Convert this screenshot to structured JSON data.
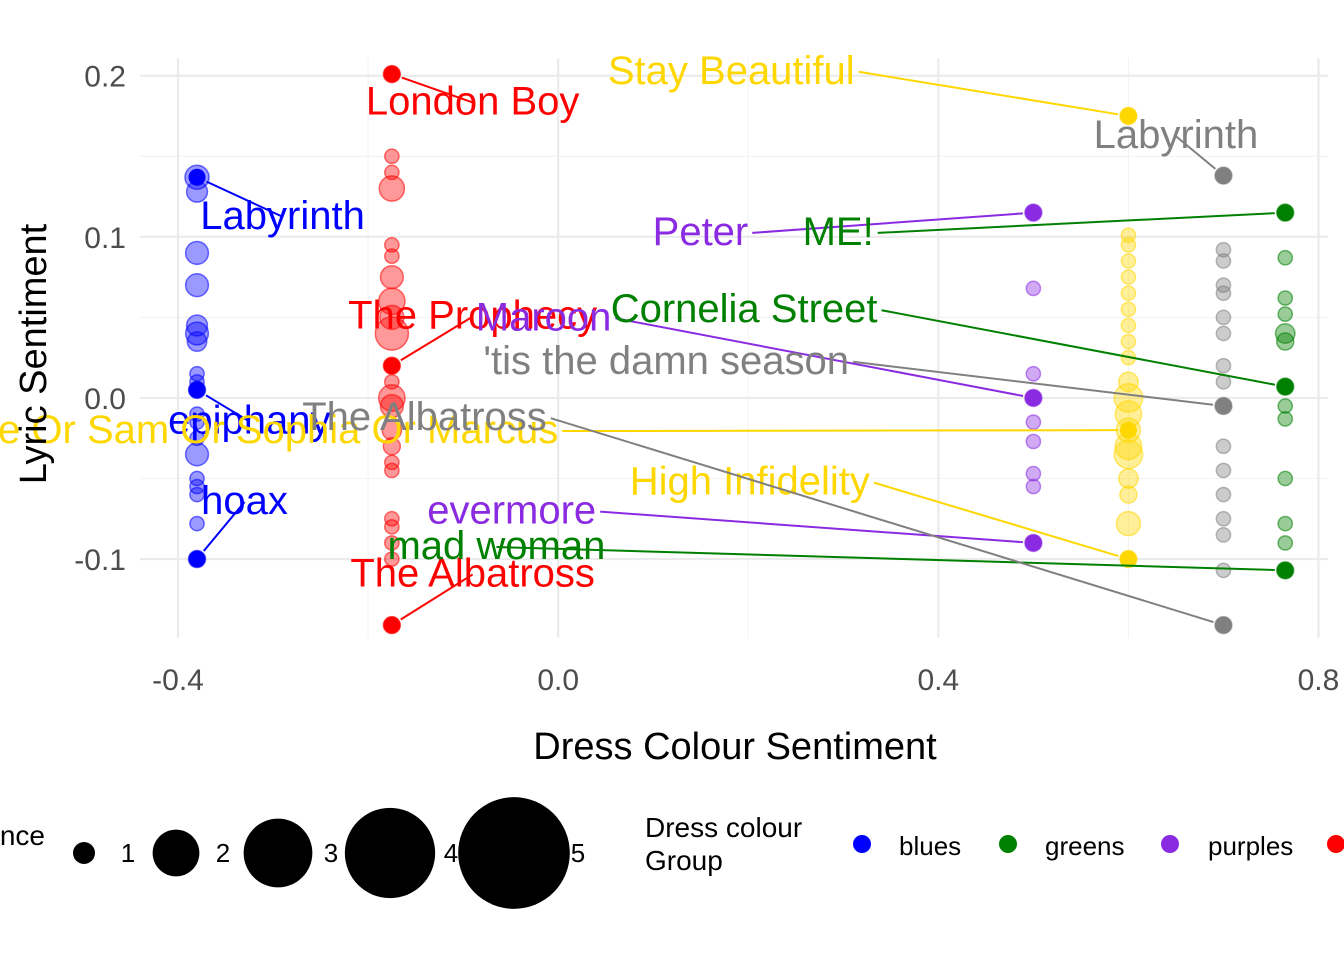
{
  "chart_data": {
    "type": "scatter",
    "xlabel": "Dress Colour Sentiment",
    "ylabel": "Lyric Sentiment",
    "xlim": [
      -0.44,
      0.81
    ],
    "ylim": [
      -0.149,
      0.211
    ],
    "x_ticks": [
      -0.4,
      0.0,
      0.4,
      0.8
    ],
    "x_tick_labels": [
      "-0.4",
      "0.0",
      "0.4",
      "0.8"
    ],
    "y_ticks": [
      -0.1,
      0.0,
      0.1,
      0.2
    ],
    "y_tick_labels": [
      "-0.1",
      "0.0",
      "0.1",
      "0.2"
    ],
    "grid": true,
    "legend_position": "bottom",
    "size_legend": {
      "title_visible": "nce",
      "entries": [
        {
          "label": "1",
          "value": 1
        },
        {
          "label": "2",
          "value": 2
        },
        {
          "label": "3",
          "value": 3
        },
        {
          "label": "4",
          "value": 4
        },
        {
          "label": "5",
          "value": 5
        }
      ]
    },
    "color_legend": {
      "title": "Dress colour Group",
      "title_lines": [
        "Dress colour",
        "Group"
      ],
      "entries": [
        {
          "label": "blues",
          "color": "#0000ff"
        },
        {
          "label": "greens",
          "color": "#008000"
        },
        {
          "label": "purples",
          "color": "#8a2be2"
        },
        {
          "label": "",
          "color": "#ff0000"
        }
      ]
    },
    "series": [
      {
        "group": "blues",
        "color": "#0000ff",
        "x": -0.38,
        "points": [
          {
            "y": 0.137,
            "size": 2.0
          },
          {
            "y": 0.128,
            "size": 1.5
          },
          {
            "y": 0.09,
            "size": 1.8
          },
          {
            "y": 0.07,
            "size": 1.8
          },
          {
            "y": 0.045,
            "size": 1.5
          },
          {
            "y": 0.04,
            "size": 1.8
          },
          {
            "y": 0.035,
            "size": 1.3
          },
          {
            "y": 0.015,
            "size": 0.7
          },
          {
            "y": 0.01,
            "size": 0.7
          },
          {
            "y": 0.005,
            "size": 1.0
          },
          {
            "y": -0.01,
            "size": 0.7
          },
          {
            "y": -0.015,
            "size": 0.7
          },
          {
            "y": -0.025,
            "size": 0.7
          },
          {
            "y": -0.035,
            "size": 1.8
          },
          {
            "y": -0.05,
            "size": 0.7
          },
          {
            "y": -0.055,
            "size": 0.7
          },
          {
            "y": -0.06,
            "size": 0.7
          },
          {
            "y": -0.078,
            "size": 0.7
          },
          {
            "y": -0.1,
            "size": 1.0
          }
        ]
      },
      {
        "group": "reds",
        "color": "#ff0000",
        "x": -0.175,
        "points": [
          {
            "y": 0.201,
            "size": 1.0
          },
          {
            "y": 0.15,
            "size": 0.7
          },
          {
            "y": 0.14,
            "size": 0.7
          },
          {
            "y": 0.13,
            "size": 2.2
          },
          {
            "y": 0.095,
            "size": 0.7
          },
          {
            "y": 0.088,
            "size": 0.7
          },
          {
            "y": 0.075,
            "size": 1.8
          },
          {
            "y": 0.06,
            "size": 2.4
          },
          {
            "y": 0.05,
            "size": 2.0
          },
          {
            "y": 0.04,
            "size": 3.8
          },
          {
            "y": 0.02,
            "size": 1.0
          },
          {
            "y": 0.01,
            "size": 0.7
          },
          {
            "y": 0.0,
            "size": 2.4
          },
          {
            "y": -0.005,
            "size": 1.8
          },
          {
            "y": -0.02,
            "size": 1.3
          },
          {
            "y": -0.03,
            "size": 1.0
          },
          {
            "y": -0.04,
            "size": 0.7
          },
          {
            "y": -0.045,
            "size": 0.7
          },
          {
            "y": -0.075,
            "size": 0.7
          },
          {
            "y": -0.08,
            "size": 0.7
          },
          {
            "y": -0.09,
            "size": 0.7
          },
          {
            "y": -0.1,
            "size": 0.7
          },
          {
            "y": -0.141,
            "size": 1.0
          }
        ]
      },
      {
        "group": "purples",
        "color": "#8a2be2",
        "x": 0.5,
        "points": [
          {
            "y": 0.115,
            "size": 1.0
          },
          {
            "y": 0.068,
            "size": 0.7
          },
          {
            "y": 0.015,
            "size": 0.7
          },
          {
            "y": 0.0,
            "size": 1.0
          },
          {
            "y": -0.015,
            "size": 0.7
          },
          {
            "y": -0.027,
            "size": 0.7
          },
          {
            "y": -0.047,
            "size": 0.7
          },
          {
            "y": -0.055,
            "size": 0.7
          },
          {
            "y": -0.09,
            "size": 1.0
          }
        ]
      },
      {
        "group": "yellows",
        "color": "#ffd700",
        "x": 0.6,
        "points": [
          {
            "y": 0.175,
            "size": 1.0
          },
          {
            "y": 0.101,
            "size": 0.7
          },
          {
            "y": 0.095,
            "size": 0.7
          },
          {
            "y": 0.085,
            "size": 0.7
          },
          {
            "y": 0.075,
            "size": 0.7
          },
          {
            "y": 0.065,
            "size": 0.7
          },
          {
            "y": 0.055,
            "size": 0.7
          },
          {
            "y": 0.045,
            "size": 0.7
          },
          {
            "y": 0.035,
            "size": 0.7
          },
          {
            "y": 0.025,
            "size": 0.7
          },
          {
            "y": 0.01,
            "size": 1.3
          },
          {
            "y": 0.0,
            "size": 2.8
          },
          {
            "y": -0.01,
            "size": 2.4
          },
          {
            "y": -0.02,
            "size": 2.0
          },
          {
            "y": -0.03,
            "size": 2.4
          },
          {
            "y": -0.035,
            "size": 2.8
          },
          {
            "y": -0.05,
            "size": 1.3
          },
          {
            "y": -0.06,
            "size": 1.0
          },
          {
            "y": -0.078,
            "size": 2.0
          },
          {
            "y": -0.1,
            "size": 1.0
          }
        ]
      },
      {
        "group": "greys",
        "color": "#808080",
        "x": 0.7,
        "points": [
          {
            "y": 0.138,
            "size": 1.0
          },
          {
            "y": 0.092,
            "size": 0.7
          },
          {
            "y": 0.085,
            "size": 0.7
          },
          {
            "y": 0.07,
            "size": 0.7
          },
          {
            "y": 0.065,
            "size": 0.7
          },
          {
            "y": 0.05,
            "size": 0.7
          },
          {
            "y": 0.04,
            "size": 0.7
          },
          {
            "y": 0.02,
            "size": 0.7
          },
          {
            "y": 0.01,
            "size": 0.7
          },
          {
            "y": -0.005,
            "size": 1.0
          },
          {
            "y": -0.03,
            "size": 0.7
          },
          {
            "y": -0.045,
            "size": 0.7
          },
          {
            "y": -0.06,
            "size": 0.7
          },
          {
            "y": -0.075,
            "size": 0.7
          },
          {
            "y": -0.085,
            "size": 0.7
          },
          {
            "y": -0.107,
            "size": 0.7
          },
          {
            "y": -0.141,
            "size": 1.0
          }
        ]
      },
      {
        "group": "greens",
        "color": "#008000",
        "x": 0.765,
        "points": [
          {
            "y": 0.115,
            "size": 1.0
          },
          {
            "y": 0.087,
            "size": 0.7
          },
          {
            "y": 0.062,
            "size": 0.7
          },
          {
            "y": 0.052,
            "size": 0.7
          },
          {
            "y": 0.04,
            "size": 1.3
          },
          {
            "y": 0.035,
            "size": 1.0
          },
          {
            "y": 0.007,
            "size": 1.0
          },
          {
            "y": -0.005,
            "size": 0.7
          },
          {
            "y": -0.013,
            "size": 0.7
          },
          {
            "y": -0.05,
            "size": 0.7
          },
          {
            "y": -0.078,
            "size": 0.7
          },
          {
            "y": -0.09,
            "size": 0.7
          },
          {
            "y": -0.107,
            "size": 1.0
          }
        ]
      }
    ],
    "annotations": [
      {
        "text": "London Boy",
        "color": "#ff0000",
        "px": -0.175,
        "py": 0.201,
        "tx": -0.09,
        "ty": 0.176,
        "anchor": "middle"
      },
      {
        "text": "Labyrinth",
        "color": "#0000ff",
        "px": -0.38,
        "py": 0.137,
        "tx": -0.29,
        "ty": 0.105,
        "anchor": "middle"
      },
      {
        "text": "The Prophecy",
        "color": "#ff0000",
        "px": -0.175,
        "py": 0.02,
        "tx": -0.09,
        "ty": 0.043,
        "anchor": "middle"
      },
      {
        "text": "epiphany",
        "color": "#0000ff",
        "px": -0.38,
        "py": 0.005,
        "tx": -0.325,
        "ty": -0.022,
        "anchor": "middle"
      },
      {
        "text": "hoax",
        "color": "#0000ff",
        "px": -0.38,
        "py": -0.1,
        "tx": -0.33,
        "ty": -0.072,
        "anchor": "middle"
      },
      {
        "text": "The Albatross",
        "color": "#ff0000",
        "px": -0.175,
        "py": -0.141,
        "tx": -0.09,
        "ty": -0.117,
        "anchor": "middle"
      },
      {
        "text": "Stay Beautiful",
        "color": "#ffd700",
        "px": 0.6,
        "py": 0.175,
        "tx": 0.312,
        "ty": 0.195,
        "anchor": "end"
      },
      {
        "text": "Labyrinth",
        "color": "#808080",
        "px": 0.7,
        "py": 0.138,
        "tx": 0.65,
        "ty": 0.155,
        "anchor": "middle"
      },
      {
        "text": "Peter",
        "color": "#8a2be2",
        "px": 0.5,
        "py": 0.115,
        "tx": 0.2,
        "ty": 0.095,
        "anchor": "end"
      },
      {
        "text": "ME!",
        "color": "#008000",
        "px": 0.765,
        "py": 0.115,
        "tx": 0.332,
        "ty": 0.095,
        "anchor": "end"
      },
      {
        "text": "Maroon",
        "color": "#8a2be2",
        "px": 0.5,
        "py": 0.0,
        "tx": 0.056,
        "ty": 0.042,
        "anchor": "end"
      },
      {
        "text": "Cornelia Street",
        "color": "#008000",
        "px": 0.765,
        "py": 0.007,
        "tx": 0.336,
        "ty": 0.047,
        "anchor": "end"
      },
      {
        "text": "'tis the damn season",
        "color": "#808080",
        "px": 0.7,
        "py": -0.005,
        "tx": 0.306,
        "ty": 0.015,
        "anchor": "end"
      },
      {
        "text": "Chloe Or Sam Or Sophia Or Marcus",
        "color": "#ffd700",
        "px": 0.6,
        "py": -0.02,
        "tx": 0.0,
        "ty": -0.028,
        "anchor": "end"
      },
      {
        "text": "High Infidelity",
        "color": "#ffd700",
        "px": 0.6,
        "py": -0.1,
        "tx": 0.328,
        "ty": -0.06,
        "anchor": "end"
      },
      {
        "text": "evermore",
        "color": "#8a2be2",
        "px": 0.5,
        "py": -0.09,
        "tx": 0.04,
        "ty": -0.078,
        "anchor": "end"
      },
      {
        "text": "mad woman",
        "color": "#008000",
        "px": 0.765,
        "py": -0.107,
        "tx": -0.065,
        "ty": -0.1,
        "anchor": "middle"
      },
      {
        "text": "The Albatross",
        "color": "#808080",
        "px": 0.7,
        "py": -0.141,
        "tx": -0.012,
        "ty": -0.02,
        "anchor": "end"
      }
    ]
  }
}
